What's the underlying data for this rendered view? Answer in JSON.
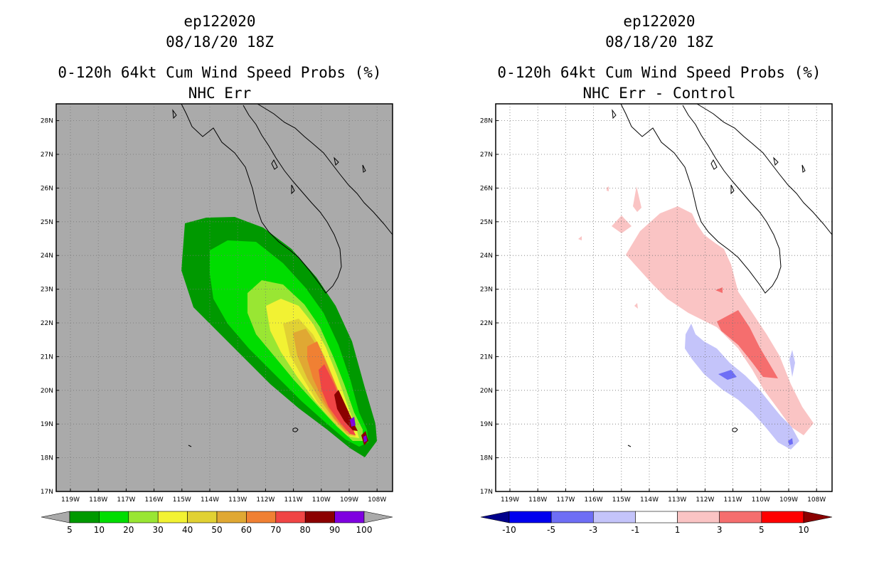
{
  "left_panel": {
    "storm_id": "ep122020",
    "datetime": "08/18/20 18Z",
    "product": "0-120h 64kt Cum Wind Speed Probs (%)",
    "subtitle": "NHC Err",
    "colorbar": {
      "labels": [
        "5",
        "10",
        "20",
        "30",
        "40",
        "50",
        "60",
        "70",
        "80",
        "90",
        "100"
      ],
      "colors": [
        "#009900",
        "#00dd00",
        "#99e633",
        "#f2f233",
        "#e1d133",
        "#e0a833",
        "#f08033",
        "#f04545",
        "#8b0000",
        "#7f00e0"
      ],
      "under_color": "#aaaaaa",
      "over_color": "#aaaaaa"
    }
  },
  "right_panel": {
    "storm_id": "ep122020",
    "datetime": "08/18/20 18Z",
    "product": "0-120h 64kt Cum Wind Speed Probs (%)",
    "subtitle": "NHC Err - Control",
    "colorbar": {
      "labels": [
        "-10",
        "-5",
        "-3",
        "-1",
        "1",
        "3",
        "5",
        "10"
      ],
      "colors": [
        "#0000ee",
        "#6e6ef5",
        "#c4c4fa",
        "#ffffff",
        "#fac4c4",
        "#f56e6e",
        "#ff0000"
      ],
      "under_color": "#00008b",
      "over_color": "#8b0000"
    }
  },
  "axes": {
    "lat_labels": [
      "17N",
      "18N",
      "19N",
      "20N",
      "21N",
      "22N",
      "23N",
      "24N",
      "25N",
      "26N",
      "27N",
      "28N"
    ],
    "lon_labels": [
      "119W",
      "118W",
      "117W",
      "116W",
      "115W",
      "114W",
      "113W",
      "112W",
      "111W",
      "110W",
      "109W",
      "108W"
    ]
  }
}
